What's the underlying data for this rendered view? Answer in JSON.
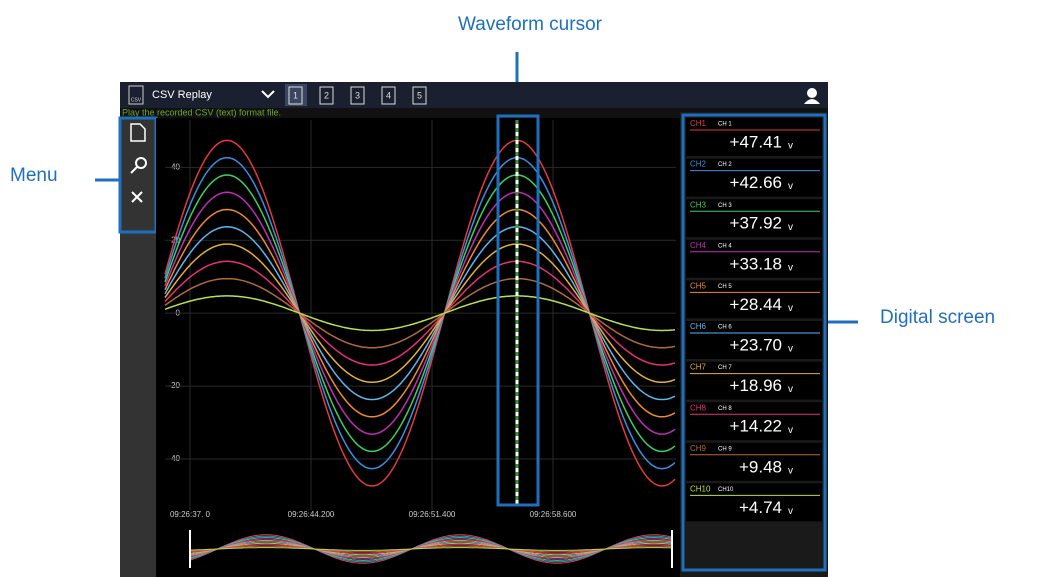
{
  "annotations": {
    "cursor": "Waveform cursor",
    "menu": "Menu",
    "digital": "Digital screen"
  },
  "app": {
    "title": "CSV Replay",
    "icon": "CSV",
    "hint": "Play the recorded CSV (text) format file.",
    "tabs": [
      "1",
      "2",
      "3",
      "4",
      "5"
    ]
  },
  "chart_data": {
    "type": "line",
    "xlabels": [
      "09:26:37. 0",
      "09:26:44.200",
      "09:26:51.400",
      "09:26:58.600"
    ],
    "ylim": [
      -54,
      53
    ],
    "yticks": [
      -40,
      -20,
      0,
      20,
      40
    ],
    "grid": true,
    "unit": "v",
    "series": [
      {
        "name": "CH1",
        "label": "CH 1",
        "color": "#e23a3f",
        "value": 47.41,
        "value_label": "+47.41"
      },
      {
        "name": "CH2",
        "label": "CH 2",
        "color": "#3b8fe0",
        "value": 42.66,
        "value_label": "+42.66"
      },
      {
        "name": "CH3",
        "label": "CH 3",
        "color": "#3fcf5c",
        "value": 37.92,
        "value_label": "+37.92"
      },
      {
        "name": "CH4",
        "label": "CH 4",
        "color": "#c22cb6",
        "value": 33.18,
        "value_label": "+33.18"
      },
      {
        "name": "CH5",
        "label": "CH 5",
        "color": "#f08a2c",
        "value": 28.44,
        "value_label": "+28.44"
      },
      {
        "name": "CH6",
        "label": "CH 6",
        "color": "#5cb6f2",
        "value": 23.7,
        "value_label": "+23.70"
      },
      {
        "name": "CH7",
        "label": "CH 7",
        "color": "#e8b030",
        "value": 18.96,
        "value_label": "+18.96"
      },
      {
        "name": "CH8",
        "label": "CH 8",
        "color": "#e8307a",
        "value": 14.22,
        "value_label": "+14.22"
      },
      {
        "name": "CH9",
        "label": "CH 9",
        "color": "#b06a3a",
        "value": 9.48,
        "value_label": "+9.48"
      },
      {
        "name": "CH10",
        "label": "CH10",
        "color": "#b8e050",
        "value": 4.74,
        "value_label": "+4.74"
      }
    ]
  }
}
